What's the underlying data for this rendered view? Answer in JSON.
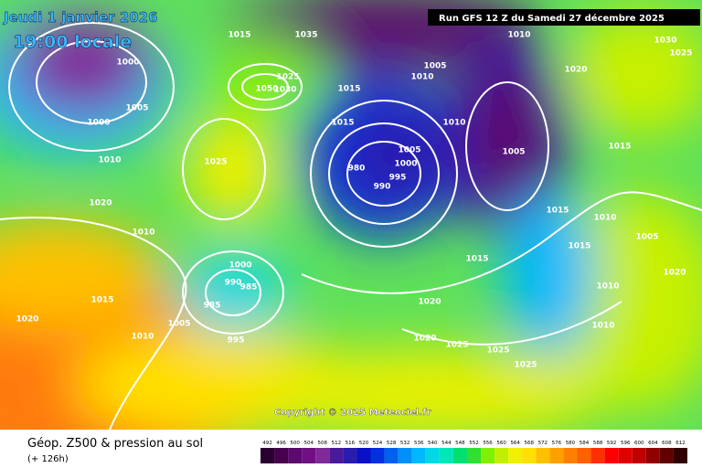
{
  "header": {
    "date": "Jeudi 1 janvier 2026",
    "time": "19:00 locale",
    "run": "Run GFS 12 Z du Samedi 27 décembre 2025"
  },
  "copyright": "Copyright © 2025 Meteociel.fr",
  "footer": {
    "title": "Géop. Z500 & pression au sol",
    "lead": "(+ 126h)"
  },
  "isobar_labels": [
    1015,
    1035,
    1010,
    1030,
    1025,
    1000,
    1005,
    1010,
    1020,
    1025,
    1030,
    1050,
    1015,
    1005,
    1000,
    1015,
    1010,
    1005,
    1005,
    1015,
    1010,
    1025,
    1000,
    980,
    995,
    990,
    1020,
    1015,
    1010,
    1010,
    1005,
    1015,
    1000,
    1015,
    1020,
    990,
    985,
    985,
    1010,
    1015,
    1020,
    1005,
    1010,
    1020,
    1010,
    995,
    1020,
    1025,
    1025,
    1025
  ],
  "legend": {
    "levels": [
      492,
      496,
      500,
      504,
      508,
      512,
      516,
      520,
      524,
      528,
      532,
      536,
      540,
      544,
      548,
      552,
      556,
      560,
      564,
      568,
      572,
      576,
      580,
      584,
      588,
      592,
      596,
      600,
      604,
      608,
      612
    ],
    "colors": [
      "#2a0030",
      "#46004e",
      "#5c0a6e",
      "#700f84",
      "#802a99",
      "#4b1a9a",
      "#2a1cad",
      "#0a10c8",
      "#0030e0",
      "#0060f0",
      "#0090f8",
      "#00b8ff",
      "#00d8e8",
      "#00e8b8",
      "#00e070",
      "#30e030",
      "#80f000",
      "#c0f000",
      "#f0f000",
      "#ffe000",
      "#ffc000",
      "#ffa000",
      "#ff8000",
      "#ff6000",
      "#ff3000",
      "#ff0000",
      "#e00000",
      "#c00000",
      "#900000",
      "#600000",
      "#300000"
    ]
  }
}
